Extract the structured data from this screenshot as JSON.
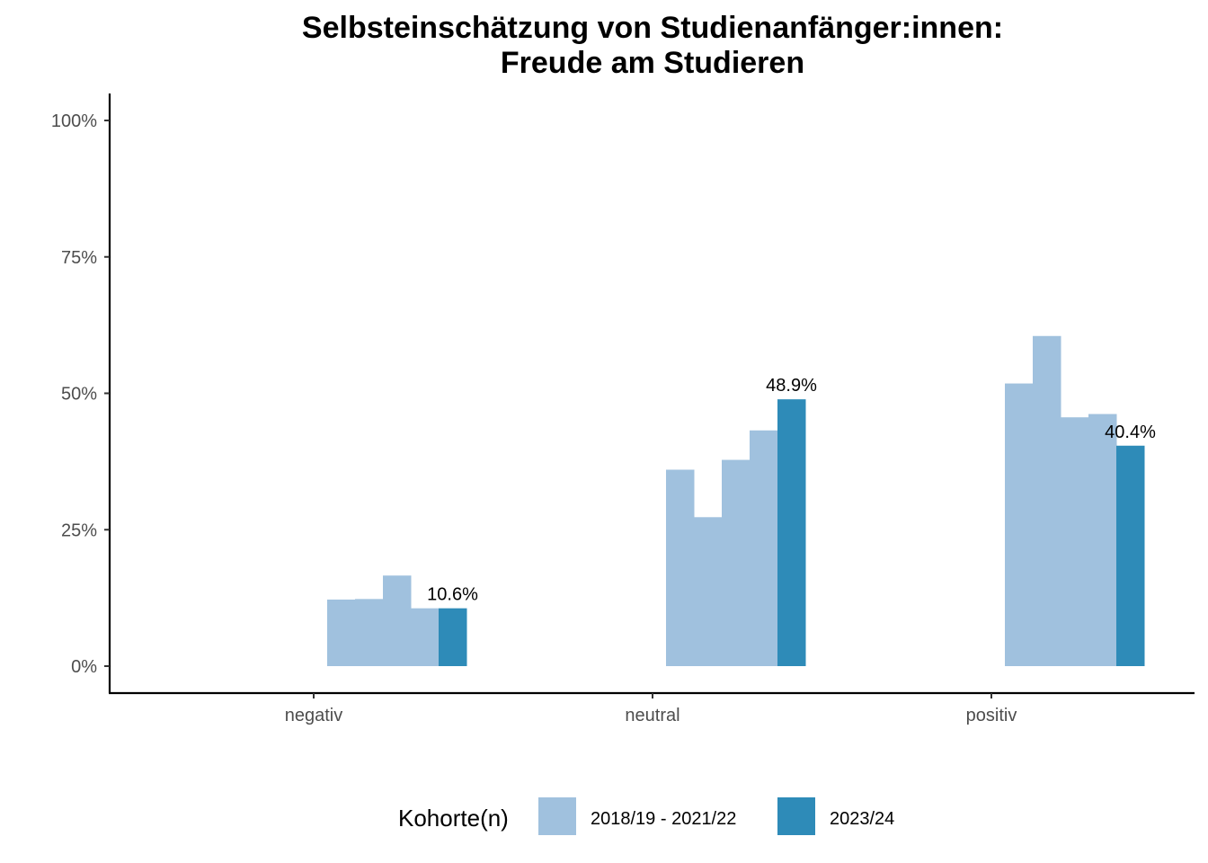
{
  "chart_data": {
    "type": "bar",
    "title": "Selbsteinschätzung von Studienanfänger:innen:",
    "subtitle": "Freude am Studieren",
    "categories": [
      "negativ",
      "neutral",
      "positiv"
    ],
    "ylim": [
      0,
      1.05
    ],
    "yticks": [
      0,
      0.25,
      0.5,
      0.75,
      1.0
    ],
    "ytick_labels": [
      "0%",
      "25%",
      "50%",
      "75%",
      "100%"
    ],
    "grid": false,
    "legend": {
      "title": "Kohorte(n)",
      "placement": "bottom",
      "entries": [
        {
          "label": "2018/19 - 2021/22",
          "color": "#a0c1de"
        },
        {
          "label": "2023/24",
          "color": "#2e8bb8"
        }
      ]
    },
    "series": [
      {
        "cohort_group": "2018/19 - 2021/22",
        "color": "#a0c1de",
        "values": [
          0.122,
          0.36,
          0.518
        ]
      },
      {
        "cohort_group": "2018/19 - 2021/22",
        "color": "#a0c1de",
        "values": [
          0.123,
          0.273,
          0.605
        ]
      },
      {
        "cohort_group": "2018/19 - 2021/22",
        "color": "#a0c1de",
        "values": [
          0.166,
          0.378,
          0.456
        ]
      },
      {
        "cohort_group": "2018/19 - 2021/22",
        "color": "#a0c1de",
        "values": [
          0.106,
          0.432,
          0.462
        ]
      },
      {
        "cohort_group": "2023/24",
        "color": "#2e8bb8",
        "values": [
          0.106,
          0.489,
          0.404
        ],
        "labels": [
          "10.6%",
          "48.9%",
          "40.4%"
        ]
      }
    ]
  }
}
